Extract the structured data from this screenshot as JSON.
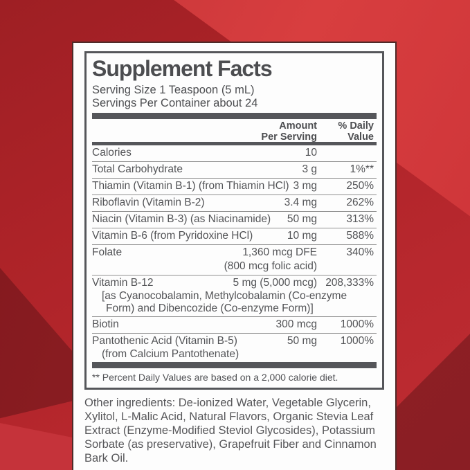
{
  "colors": {
    "background_red": "#b4262c",
    "background_red_light": "#d83e3f",
    "background_red_dark": "#8e2127",
    "card_background": "#fdfdfd",
    "card_border": "#4f2a28",
    "facts_box_border": "#55565a",
    "divider_bar": "#55565a",
    "text": "#4e4f52"
  },
  "label": {
    "title": "Supplement Facts",
    "serving_size": "Serving Size 1 Teaspoon (5 mL)",
    "servings_per_container": "Servings Per Container about 24",
    "header": {
      "amount_line1": "Amount",
      "amount_line2": "Per Serving",
      "dv_line1": "% Daily",
      "dv_line2": "Value"
    },
    "rows": [
      {
        "name": "Calories",
        "amount": "10",
        "amount2": "",
        "dv": "",
        "sub1": "",
        "sub2": ""
      },
      {
        "name": "Total Carbohydrate",
        "amount": "3 g",
        "amount2": "",
        "dv": "1%**",
        "sub1": "",
        "sub2": ""
      },
      {
        "name": "Thiamin (Vitamin B-1) (from Thiamin HCl)",
        "amount": "3 mg",
        "amount2": "",
        "dv": "250%",
        "sub1": "",
        "sub2": ""
      },
      {
        "name": "Riboflavin (Vitamin B-2)",
        "amount": "3.4 mg",
        "amount2": "",
        "dv": "262%",
        "sub1": "",
        "sub2": ""
      },
      {
        "name": "Niacin (Vitamin B-3) (as Niacinamide)",
        "amount": "50 mg",
        "amount2": "",
        "dv": "313%",
        "sub1": "",
        "sub2": ""
      },
      {
        "name": "Vitamin B-6 (from Pyridoxine HCl)",
        "amount": "10 mg",
        "amount2": "",
        "dv": "588%",
        "sub1": "",
        "sub2": ""
      },
      {
        "name": "Folate",
        "amount": "1,360 mcg DFE",
        "amount2": "(800 mcg folic acid)",
        "dv": "340%",
        "sub1": "",
        "sub2": ""
      },
      {
        "name": "Vitamin B-12",
        "amount": "5 mg (5,000 mcg)",
        "amount2": "",
        "dv": "208,333%",
        "sub1": "[as Cyanocobalamin, Methylcobalamin (Co-enzyme",
        "sub2": "Form) and Dibencozide (Co-enzyme Form)]"
      },
      {
        "name": "Biotin",
        "amount": "300 mcg",
        "amount2": "",
        "dv": "1000%",
        "sub1": "",
        "sub2": ""
      },
      {
        "name": "Pantothenic Acid (Vitamin B-5)",
        "amount": "50 mg",
        "amount2": "",
        "dv": "1000%",
        "sub1": "(from Calcium Pantothenate)",
        "sub2": ""
      }
    ],
    "footnote": "** Percent Daily Values are based on a 2,000 calorie diet.",
    "other_ingredients": "Other ingredients: De-ionized Water, Vegetable Glycerin, Xylitol, L-Malic Acid, Natural Flavors, Organic Stevia Leaf Extract (Enzyme-Modified Steviol Glycosides), Potassium Sorbate (as preservative), Grapefruit Fiber and Cinnamon Bark Oil."
  }
}
